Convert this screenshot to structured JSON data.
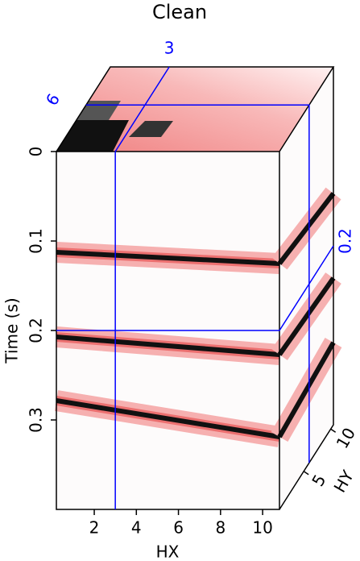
{
  "chart_data": {
    "type": "cube",
    "title": "Clean",
    "x_label": "HX",
    "y_label": "Time (s)",
    "z_label": "HY",
    "xlim": [
      0.2,
      10.8
    ],
    "xticks": [
      2,
      4,
      6,
      8,
      10
    ],
    "ylim": [
      0,
      0.4
    ],
    "yticks": [
      0,
      0.1,
      0.2,
      0.3
    ],
    "zlim": [
      0.5,
      10.5
    ],
    "zticks": [
      5,
      10
    ],
    "slices": {
      "x": 3,
      "z": 6,
      "y": 0.2
    },
    "slice_color": "#0000ff"
  }
}
